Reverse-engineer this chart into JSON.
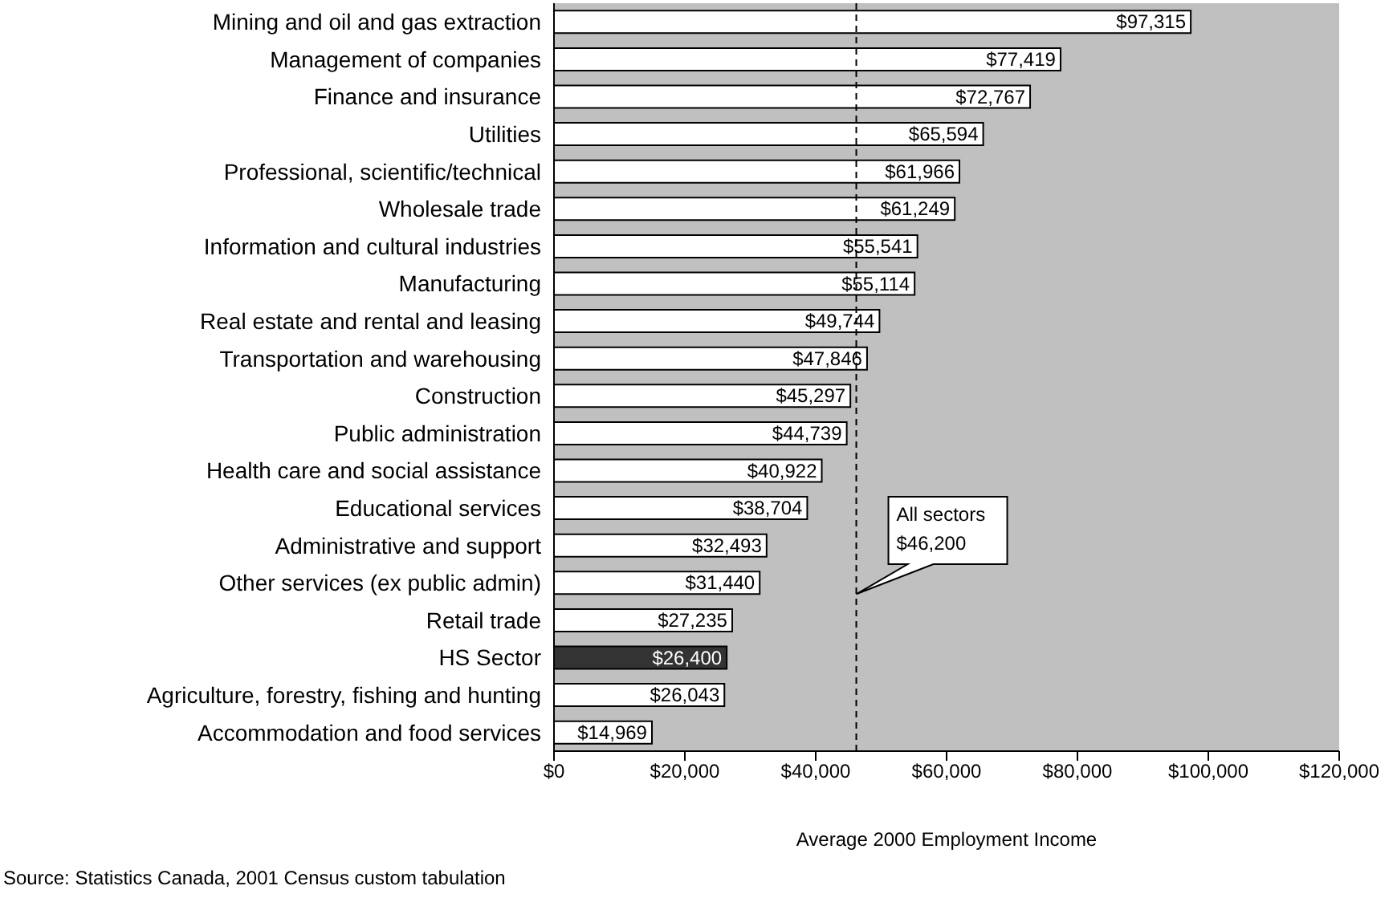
{
  "chart_data": {
    "type": "bar",
    "orientation": "horizontal",
    "xlabel": "Average 2000 Employment Income",
    "categories": [
      "Mining and oil and gas extraction",
      "Management of companies",
      "Finance and insurance",
      "Utilities",
      "Professional, scientific/technical",
      "Wholesale trade",
      "Information and cultural industries",
      "Manufacturing",
      "Real estate and rental and leasing",
      "Transportation and warehousing",
      "Construction",
      "Public administration",
      "Health care and social assistance",
      "Educational services",
      "Administrative and support",
      "Other services (ex public admin)",
      "Retail trade",
      "HS Sector",
      "Agriculture, forestry, fishing and hunting",
      "Accommodation and food services"
    ],
    "values": [
      97315,
      77419,
      72767,
      65594,
      61966,
      61249,
      55541,
      55114,
      49744,
      47846,
      45297,
      44739,
      40922,
      38704,
      32493,
      31440,
      27235,
      26400,
      26043,
      14969
    ],
    "value_labels": [
      "$97,315",
      "$77,419",
      "$72,767",
      "$65,594",
      "$61,966",
      "$61,249",
      "$55,541",
      "$55,114",
      "$49,744",
      "$47,846",
      "$45,297",
      "$44,739",
      "$40,922",
      "$38,704",
      "$32,493",
      "$31,440",
      "$27,235",
      "$26,400",
      "$26,043",
      "$14,969"
    ],
    "colors": [
      "#ffffff",
      "#ffffff",
      "#ffffff",
      "#ffffff",
      "#ffffff",
      "#ffffff",
      "#ffffff",
      "#ffffff",
      "#ffffff",
      "#ffffff",
      "#ffffff",
      "#ffffff",
      "#ffffff",
      "#ffffff",
      "#ffffff",
      "#ffffff",
      "#ffffff",
      "#333333",
      "#ffffff",
      "#ffffff"
    ],
    "xlim": [
      0,
      120000
    ],
    "xticks": [
      {
        "value": 0,
        "label": "$0"
      },
      {
        "value": 20000,
        "label": "$20,000"
      },
      {
        "value": 40000,
        "label": "$40,000"
      },
      {
        "value": 60000,
        "label": "$60,000"
      },
      {
        "value": 80000,
        "label": "$80,000"
      },
      {
        "value": 100000,
        "label": "$100,000"
      },
      {
        "value": 120000,
        "label": "$120,000"
      }
    ],
    "ref_lines": [
      {
        "axis": "x",
        "value": 46200,
        "label": "All sectors $46,200",
        "line_style": "dashed",
        "color": "#000000"
      }
    ],
    "annotations": [
      "Source: Statistics Canada, 2001 Census custom tabulation"
    ],
    "grid": false
  }
}
